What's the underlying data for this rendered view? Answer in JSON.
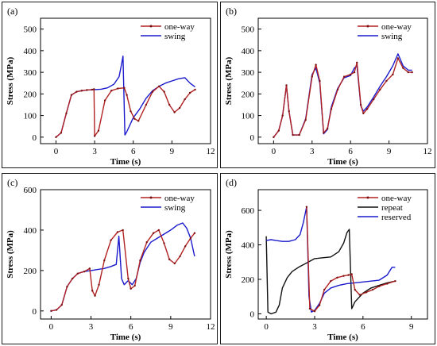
{
  "colors": {
    "one_way": "#b22222",
    "swing": "#1a1acd",
    "repeat": "#111111",
    "reserved": "#1a1acd",
    "marker": "#7a1010"
  },
  "chart_data": [
    {
      "panel_label": "(a)",
      "type": "line",
      "xlabel": "Time (s)",
      "ylabel": "Stress (MPa)",
      "xlim": [
        -1.2,
        12
      ],
      "ylim": [
        -30,
        550
      ],
      "xticks": [
        0,
        3,
        6,
        9,
        12
      ],
      "yticks": [
        0,
        100,
        200,
        300,
        400,
        500
      ],
      "legend_position": "top-right",
      "series": [
        {
          "name": "one-way",
          "color_key": "one_way",
          "markers": true,
          "x": [
            0,
            0.4,
            0.8,
            1.2,
            1.6,
            2.0,
            2.4,
            2.8,
            2.95,
            3.0,
            3.3,
            3.8,
            4.3,
            4.8,
            5.3,
            5.5,
            5.8,
            6.1,
            6.4,
            7.0,
            7.5,
            8.0,
            8.4,
            8.8,
            9.2,
            9.6,
            10.0,
            10.4,
            10.8
          ],
          "y": [
            0,
            20,
            110,
            195,
            210,
            215,
            218,
            220,
            222,
            5,
            30,
            170,
            215,
            225,
            228,
            195,
            120,
            85,
            75,
            150,
            210,
            235,
            210,
            150,
            115,
            135,
            175,
            205,
            220
          ]
        },
        {
          "name": "swing",
          "color_key": "swing",
          "markers": false,
          "x": [
            0,
            0.4,
            0.8,
            1.2,
            1.6,
            2.0,
            2.4,
            2.8,
            3.0,
            3.5,
            4.0,
            4.5,
            4.9,
            5.1,
            5.2,
            5.35,
            5.5,
            6.0,
            6.5,
            7.0,
            7.5,
            8.0,
            8.5,
            9.0,
            9.5,
            10.0,
            10.4,
            10.8
          ],
          "y": [
            0,
            20,
            110,
            195,
            210,
            215,
            218,
            219,
            220,
            222,
            228,
            245,
            280,
            340,
            375,
            10,
            25,
            90,
            130,
            180,
            215,
            235,
            250,
            260,
            270,
            275,
            250,
            232
          ]
        }
      ]
    },
    {
      "panel_label": "(b)",
      "type": "line",
      "xlabel": "Time (s)",
      "ylabel": "Stress (MPa)",
      "xlim": [
        -1.2,
        12
      ],
      "ylim": [
        -30,
        550
      ],
      "xticks": [
        0,
        3,
        6,
        9,
        12
      ],
      "yticks": [
        0,
        100,
        200,
        300,
        400,
        500
      ],
      "legend_position": "top-right",
      "series": [
        {
          "name": "one-way",
          "color_key": "one_way",
          "markers": true,
          "x": [
            0,
            0.4,
            0.7,
            1.0,
            1.2,
            1.5,
            2.0,
            2.5,
            3.0,
            3.3,
            3.6,
            3.9,
            4.2,
            4.5,
            5.0,
            5.5,
            6.0,
            6.3,
            6.5,
            6.8,
            7.0,
            7.3,
            7.8,
            8.3,
            8.8,
            9.3,
            9.7,
            10.1,
            10.5,
            10.8
          ],
          "y": [
            0,
            30,
            100,
            240,
            120,
            10,
            10,
            80,
            280,
            335,
            260,
            20,
            40,
            130,
            220,
            280,
            290,
            300,
            345,
            150,
            110,
            130,
            175,
            220,
            260,
            290,
            365,
            320,
            300,
            300
          ]
        },
        {
          "name": "swing",
          "color_key": "swing",
          "markers": false,
          "x": [
            0,
            0.4,
            0.7,
            1.0,
            1.2,
            1.5,
            2.0,
            2.5,
            3.0,
            3.3,
            3.6,
            3.9,
            4.2,
            4.5,
            5.0,
            5.5,
            6.0,
            6.3,
            6.5,
            6.8,
            7.0,
            7.3,
            7.8,
            8.3,
            8.8,
            9.3,
            9.7,
            10.1,
            10.5,
            10.8
          ],
          "y": [
            0,
            30,
            100,
            240,
            120,
            10,
            10,
            85,
            290,
            320,
            250,
            15,
            35,
            140,
            225,
            275,
            285,
            320,
            330,
            145,
            120,
            140,
            185,
            235,
            280,
            330,
            385,
            330,
            310,
            310
          ]
        }
      ]
    },
    {
      "panel_label": "(c)",
      "type": "line",
      "xlabel": "Time (s)",
      "ylabel": "Stress (MPa)",
      "xlim": [
        -0.8,
        12
      ],
      "ylim": [
        -40,
        600
      ],
      "xticks": [
        0,
        3,
        6,
        9,
        12
      ],
      "yticks": [
        0,
        200,
        400,
        600
      ],
      "legend_position": "top-right",
      "series": [
        {
          "name": "one-way",
          "color_key": "one_way",
          "markers": true,
          "x": [
            0,
            0.4,
            0.8,
            1.2,
            1.6,
            2.0,
            2.5,
            2.9,
            3.1,
            3.3,
            3.6,
            4.0,
            4.5,
            5.0,
            5.4,
            5.8,
            6.0,
            6.3,
            6.7,
            7.2,
            7.7,
            8.1,
            8.5,
            8.9,
            9.3,
            9.7,
            10.1,
            10.5,
            10.8
          ],
          "y": [
            0,
            5,
            30,
            120,
            160,
            185,
            195,
            210,
            100,
            75,
            130,
            250,
            350,
            390,
            400,
            160,
            110,
            125,
            250,
            340,
            385,
            400,
            335,
            255,
            235,
            270,
            320,
            360,
            385
          ]
        },
        {
          "name": "swing",
          "color_key": "swing",
          "markers": false,
          "x": [
            0,
            0.4,
            0.8,
            1.2,
            1.6,
            2.0,
            2.5,
            3.0,
            3.5,
            4.0,
            4.5,
            4.9,
            5.1,
            5.3,
            5.5,
            5.8,
            6.1,
            6.4,
            6.7,
            7.0,
            7.5,
            8.0,
            8.5,
            9.0,
            9.5,
            9.9,
            10.2,
            10.5,
            10.8
          ],
          "y": [
            0,
            5,
            30,
            120,
            160,
            185,
            195,
            200,
            205,
            210,
            220,
            230,
            370,
            160,
            130,
            150,
            130,
            160,
            240,
            290,
            340,
            360,
            380,
            400,
            425,
            435,
            410,
            360,
            270
          ]
        }
      ]
    },
    {
      "panel_label": "(d)",
      "type": "line",
      "xlabel": "Time (s)",
      "ylabel": "Stress (MPa)",
      "xlim": [
        -0.5,
        10
      ],
      "ylim": [
        -30,
        720
      ],
      "xticks": [
        0,
        3,
        6,
        9
      ],
      "yticks": [
        0,
        200,
        400,
        600
      ],
      "legend_position": "top-right",
      "series": [
        {
          "name": "one-way",
          "color_key": "one_way",
          "markers": true,
          "x": [
            2.5,
            2.7,
            3.0,
            3.3,
            3.6,
            4.0,
            4.4,
            4.8,
            5.1,
            5.3,
            5.5,
            5.8,
            6.2,
            6.6,
            7.0,
            7.5,
            8.0
          ],
          "y": [
            620,
            30,
            15,
            50,
            140,
            190,
            210,
            220,
            225,
            230,
            140,
            110,
            125,
            140,
            160,
            175,
            190
          ]
        },
        {
          "name": "repeat",
          "color_key": "repeat",
          "markers": false,
          "x": [
            0,
            0.1,
            0.3,
            0.6,
            0.8,
            1.0,
            1.3,
            1.6,
            2.0,
            2.5,
            3.0,
            3.5,
            4.0,
            4.5,
            4.8,
            5.0,
            5.15,
            5.3,
            5.5,
            6.0,
            6.5,
            7.0,
            7.5,
            8.0
          ],
          "y": [
            450,
            10,
            0,
            10,
            50,
            150,
            210,
            245,
            270,
            295,
            320,
            325,
            330,
            360,
            410,
            470,
            490,
            30,
            70,
            120,
            150,
            165,
            180,
            190
          ]
        },
        {
          "name": "reserved",
          "color_key": "reserved",
          "markers": false,
          "x": [
            0,
            0.3,
            0.6,
            1.0,
            1.4,
            1.8,
            2.1,
            2.3,
            2.5,
            2.65,
            2.8,
            3.0,
            3.3,
            3.6,
            4.0,
            4.5,
            5.0,
            5.5,
            6.0,
            6.5,
            7.0,
            7.5,
            7.8,
            8.0
          ],
          "y": [
            425,
            430,
            425,
            420,
            420,
            430,
            460,
            530,
            620,
            100,
            10,
            20,
            60,
            120,
            150,
            165,
            175,
            180,
            185,
            190,
            195,
            225,
            270,
            270
          ]
        }
      ]
    }
  ]
}
